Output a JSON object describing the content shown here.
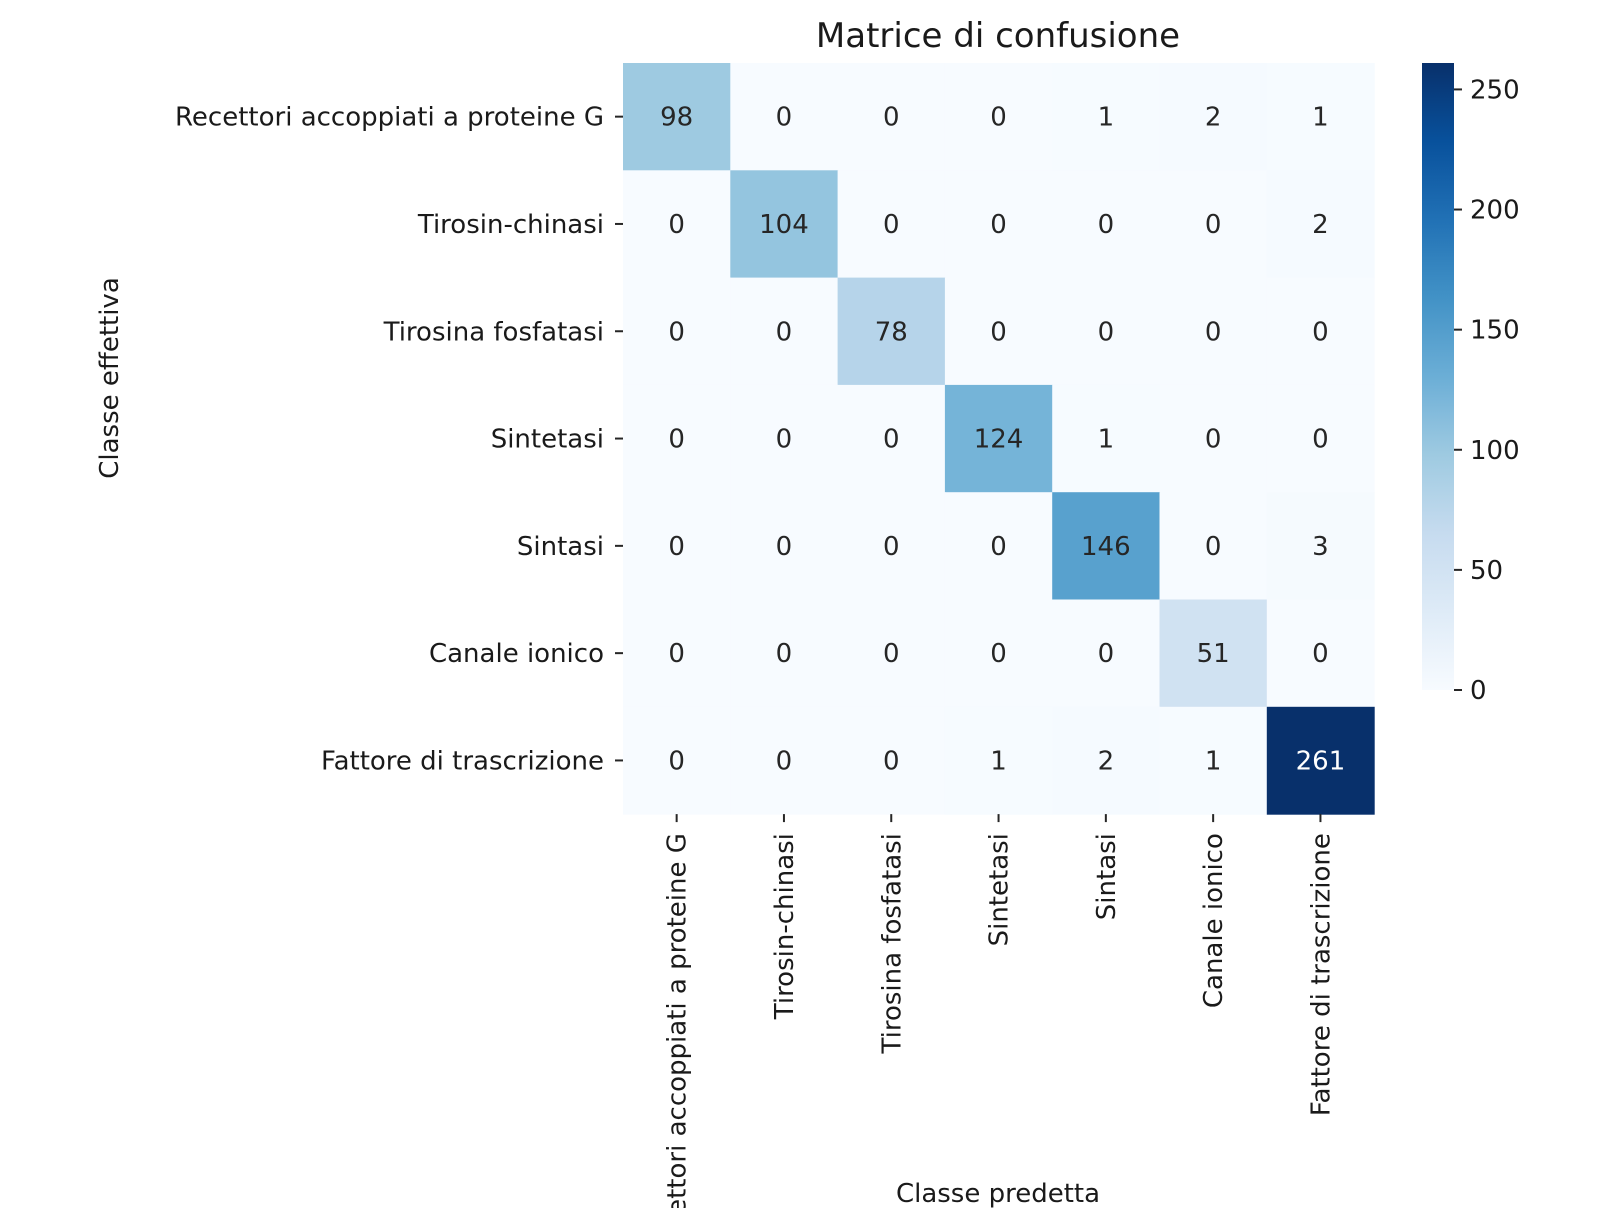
{
  "chart_data": {
    "type": "heatmap",
    "title": "Matrice di confusione",
    "xlabel": "Classe predetta",
    "ylabel": "Classe effettiva",
    "x_categories": [
      "Recettori accoppiati a proteine G",
      "Tirosin-chinasi",
      "Tirosina fosfatasi",
      "Sintetasi",
      "Sintasi",
      "Canale ionico",
      "Fattore di trascrizione"
    ],
    "y_categories": [
      "Recettori accoppiati a proteine G",
      "Tirosin-chinasi",
      "Tirosina fosfatasi",
      "Sintetasi",
      "Sintasi",
      "Canale ionico",
      "Fattore di trascrizione"
    ],
    "values": [
      [
        98,
        0,
        0,
        0,
        1,
        2,
        1
      ],
      [
        0,
        104,
        0,
        0,
        0,
        0,
        2
      ],
      [
        0,
        0,
        78,
        0,
        0,
        0,
        0
      ],
      [
        0,
        0,
        0,
        124,
        1,
        0,
        0
      ],
      [
        0,
        0,
        0,
        0,
        146,
        0,
        3
      ],
      [
        0,
        0,
        0,
        0,
        0,
        51,
        0
      ],
      [
        0,
        0,
        0,
        1,
        2,
        1,
        261
      ]
    ],
    "colormap": "Blues",
    "colorbar": {
      "range": [
        0,
        261
      ],
      "ticks": [
        0,
        50,
        100,
        150,
        200,
        250
      ]
    },
    "colors": {
      "low": "#f7fbff",
      "high": "#08306b",
      "text_dark": "#262626",
      "text_light": "#ffffff"
    }
  }
}
